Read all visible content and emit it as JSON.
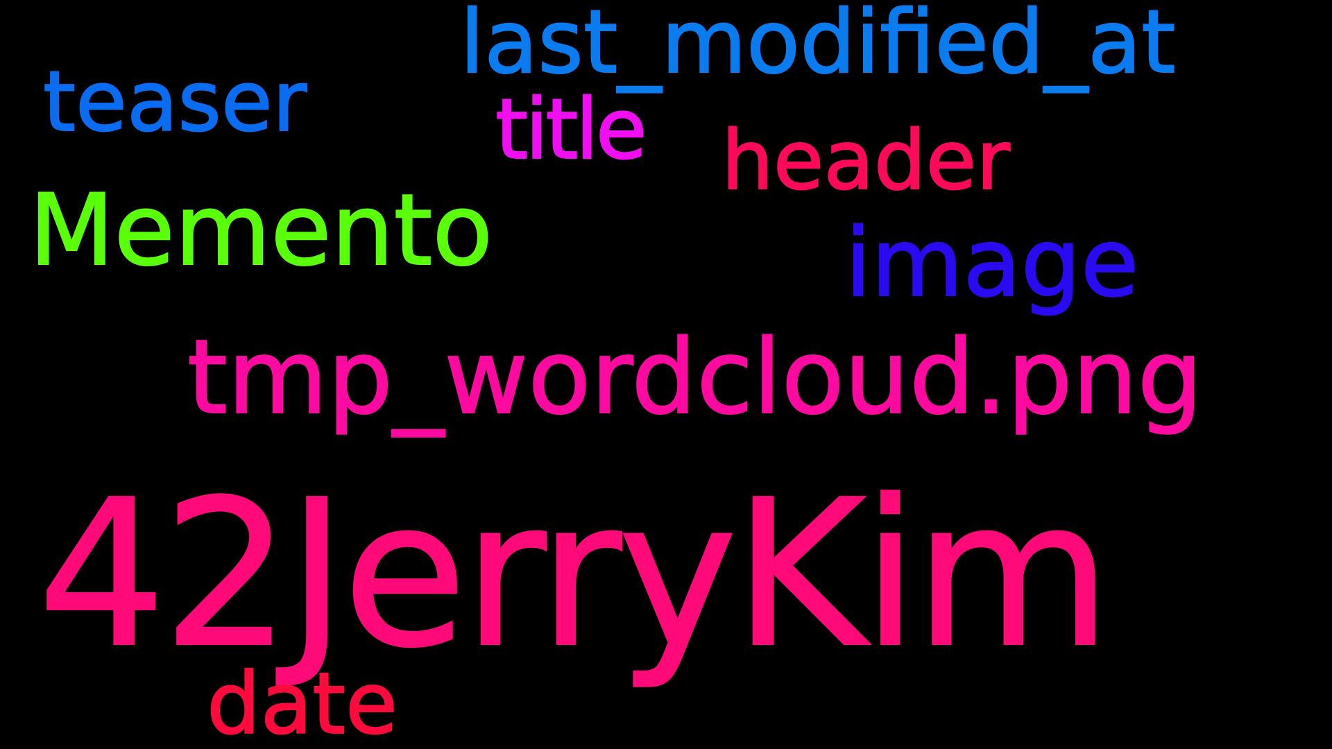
{
  "words": [
    {
      "id": "last-modified",
      "text": "last_modified_at",
      "color": "#0a7cf0"
    },
    {
      "id": "teaser",
      "text": "teaser",
      "color": "#0a6cf0"
    },
    {
      "id": "title",
      "text": "title",
      "color": "#f00ff0"
    },
    {
      "id": "header",
      "text": "header",
      "color": "#ff0a5a"
    },
    {
      "id": "memento",
      "text": "Memento",
      "color": "#5aff0a"
    },
    {
      "id": "image",
      "text": "image",
      "color": "#2a0af0"
    },
    {
      "id": "tmp",
      "text": "tmp_wordcloud.png",
      "color": "#ff0aa0"
    },
    {
      "id": "jerry",
      "text": "42JerryKim",
      "color": "#ff0a78"
    },
    {
      "id": "date",
      "text": "date",
      "color": "#ff0a3c"
    }
  ]
}
